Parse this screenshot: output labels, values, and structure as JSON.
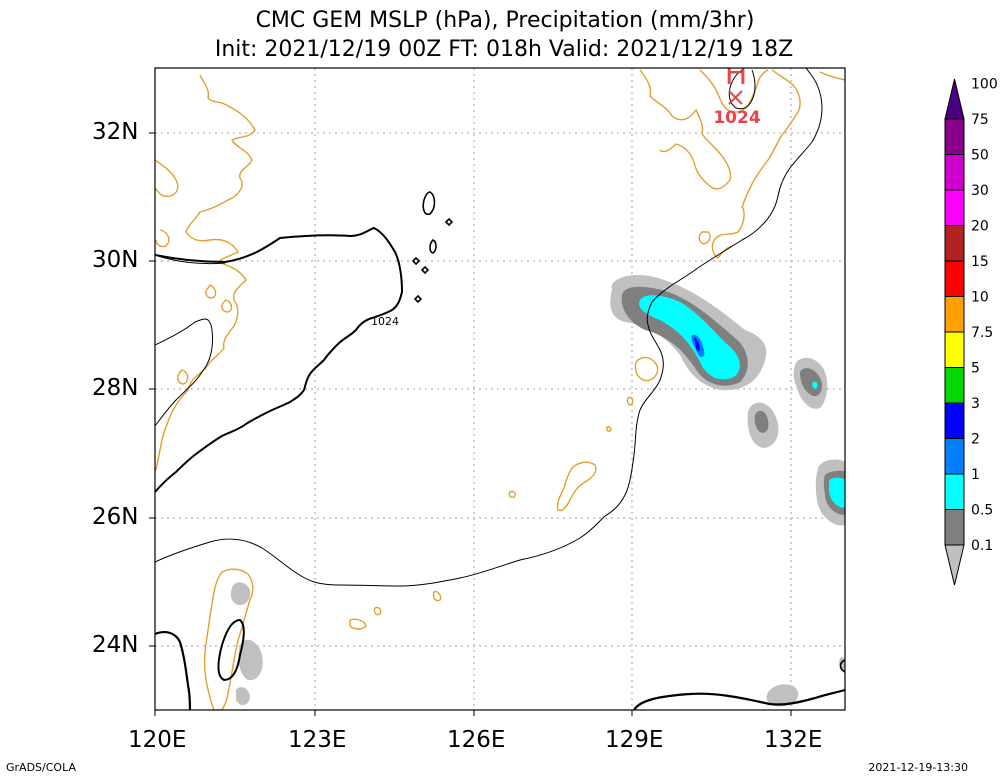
{
  "title_line1": "CMC GEM MSLP (hPa), Precipitation (mm/3hr)",
  "title_line2": "Init: 2021/12/19 00Z  FT: 018h  Valid: 2021/12/19 18Z",
  "footer_left": "GrADS/COLA",
  "footer_right": "2021-12-19-13:30",
  "x_ticks": [
    "120E",
    "123E",
    "126E",
    "129E",
    "132E"
  ],
  "y_ticks": [
    "32N",
    "30N",
    "28N",
    "26N",
    "24N"
  ],
  "isobar_label": "1024",
  "high_center": {
    "letter": "H",
    "value": "1024",
    "color": "#e8454a"
  },
  "colorbar": {
    "labels": [
      "0.1",
      "0.5",
      "1",
      "2",
      "3",
      "5",
      "7.5",
      "10",
      "15",
      "20",
      "30",
      "50",
      "75",
      "100"
    ],
    "colors": [
      "#c0c0c0",
      "#7f7f7f",
      "#00ffff",
      "#0080ff",
      "#0000ff",
      "#00d800",
      "#ffff00",
      "#ffa000",
      "#ff0000",
      "#b22222",
      "#ff00ff",
      "#d000d0",
      "#8b008b",
      "#4b0082"
    ]
  },
  "colors": {
    "coastline": "#e0a030",
    "isobar": "#000000",
    "grid": "#b0b0b0"
  }
}
